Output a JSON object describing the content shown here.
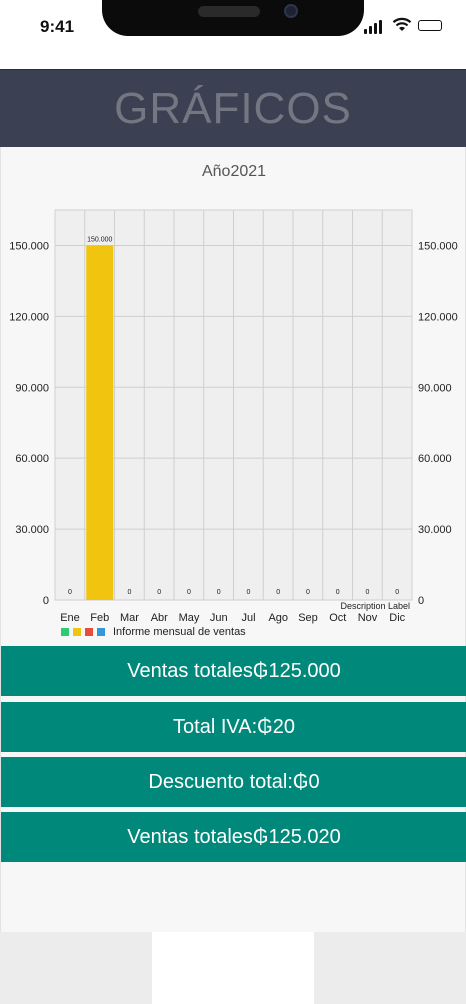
{
  "status_bar": {
    "time": "9:41"
  },
  "header": {
    "title": "GRÁFICOS"
  },
  "chart": {
    "year_title": "Año2021"
  },
  "chart_data": {
    "type": "bar",
    "categories": [
      "Ene",
      "Feb",
      "Mar",
      "Abr",
      "May",
      "Jun",
      "Jul",
      "Ago",
      "Sep",
      "Oct",
      "Nov",
      "Dic"
    ],
    "series": [
      {
        "name": "Informe mensual de ventas",
        "values": [
          0,
          150000,
          0,
          0,
          0,
          0,
          0,
          0,
          0,
          0,
          0,
          0
        ]
      }
    ],
    "value_labels": [
      "0",
      "150.000",
      "0",
      "0",
      "0",
      "0",
      "0",
      "0",
      "0",
      "0",
      "0",
      "0"
    ],
    "y_ticks": [
      0,
      30000,
      60000,
      90000,
      120000,
      150000
    ],
    "y_tick_labels": [
      "0",
      "30.000",
      "60.000",
      "90.000",
      "120.000",
      "150.000"
    ],
    "ylim": [
      0,
      165000
    ],
    "description": "Description Label",
    "legend": {
      "label": "Informe mensual de ventas",
      "colors": [
        "#2ecc71",
        "#f1c40f",
        "#e74c3c",
        "#3498db"
      ],
      "placement": "bottom-left"
    },
    "bar_color": "#f1c40f",
    "grid": true
  },
  "summary": [
    {
      "label": "Ventas totales₲125.000"
    },
    {
      "label": "Total IVA:₲20"
    },
    {
      "label": "Descuento total:₲0"
    },
    {
      "label": "Ventas totales₲125.020"
    }
  ],
  "colors": {
    "header_bg": "#3b4152",
    "accent": "#00897b"
  }
}
